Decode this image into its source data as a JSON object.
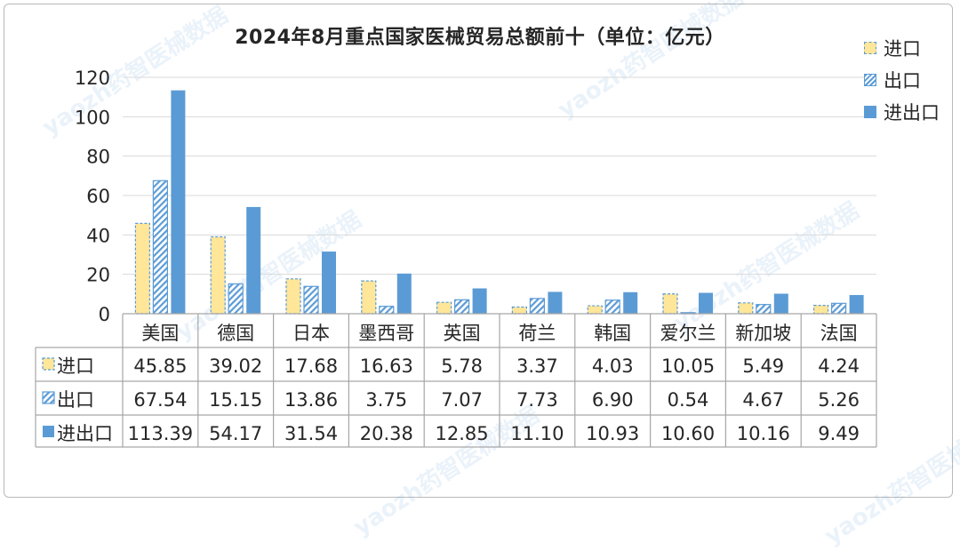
{
  "watermark_text": "yaozh药智医械数据",
  "chart_data": {
    "type": "bar",
    "title": "2024年8月重点国家医械贸易总额前十（单位：亿元）",
    "categories": [
      "美国",
      "德国",
      "日本",
      "墨西哥",
      "英国",
      "荷兰",
      "韩国",
      "爱尔兰",
      "新加坡",
      "法国"
    ],
    "ylim": [
      0,
      120
    ],
    "yticks": [
      0,
      20,
      40,
      60,
      80,
      100,
      120
    ],
    "grid": true,
    "legend_position": "right",
    "series": [
      {
        "name": "进口",
        "values": [
          45.85,
          39.02,
          17.68,
          16.63,
          5.78,
          3.37,
          4.03,
          10.05,
          5.49,
          4.24
        ],
        "labels": [
          "45.85",
          "39.02",
          "17.68",
          "16.63",
          "5.78",
          "3.37",
          "4.03",
          "10.05",
          "5.49",
          "4.24"
        ],
        "color": "#ffe699",
        "border": "#5b9bd5",
        "pattern": "dashed"
      },
      {
        "name": "出口",
        "values": [
          67.54,
          15.15,
          13.86,
          3.75,
          7.07,
          7.73,
          6.9,
          0.54,
          4.67,
          5.26
        ],
        "labels": [
          "67.54",
          "15.15",
          "13.86",
          "3.75",
          "7.07",
          "7.73",
          "6.90",
          "0.54",
          "4.67",
          "5.26"
        ],
        "color": "#5b9bd5",
        "pattern": "hatched"
      },
      {
        "name": "进出口",
        "values": [
          113.39,
          54.17,
          31.54,
          20.38,
          12.85,
          11.1,
          10.93,
          10.6,
          10.16,
          9.49
        ],
        "labels": [
          "113.39",
          "54.17",
          "31.54",
          "20.38",
          "12.85",
          "11.10",
          "10.93",
          "10.60",
          "10.16",
          "9.49"
        ],
        "color": "#5b9bd5",
        "pattern": "solid"
      }
    ]
  }
}
